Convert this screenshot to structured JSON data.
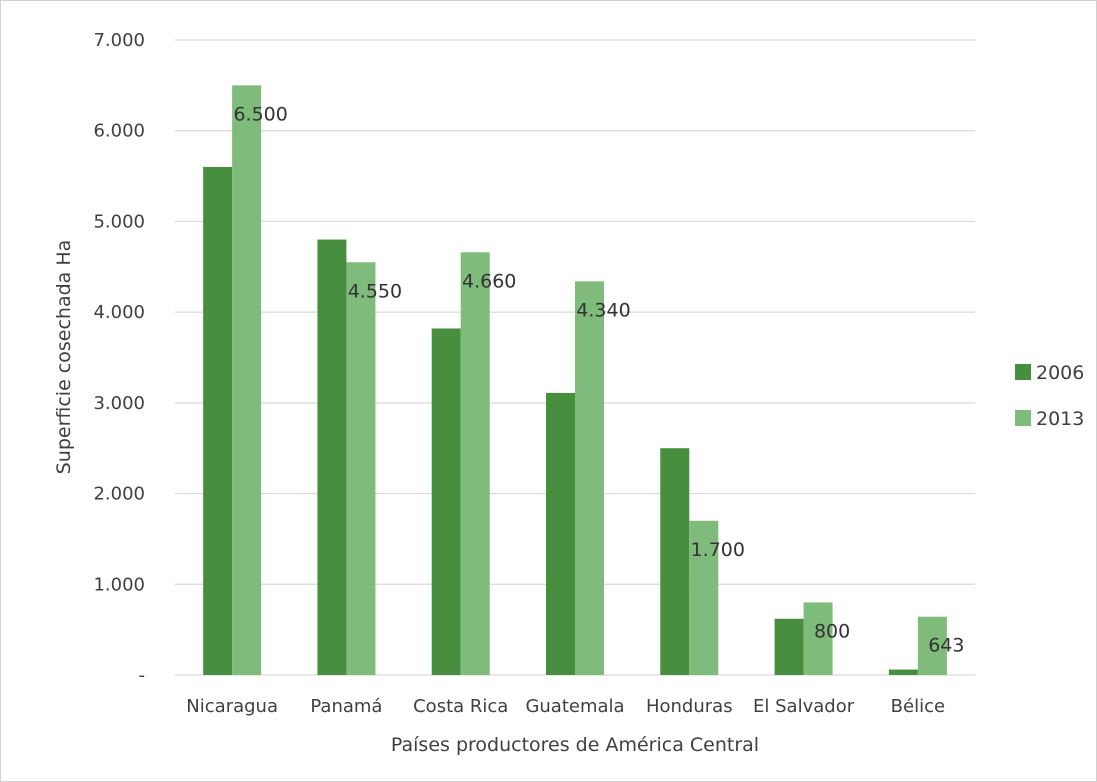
{
  "chart_data": {
    "type": "bar",
    "title": "",
    "xlabel": "Países productores de América Central",
    "ylabel": "Superficie cosechada Ha",
    "categories": [
      "Nicaragua",
      "Panamá",
      "Costa Rica",
      "Guatemala",
      "Honduras",
      "El Salvador",
      "Bélice"
    ],
    "series": [
      {
        "name": "2006",
        "color": "#478f3e",
        "values": [
          5600,
          4800,
          3820,
          3110,
          2500,
          620,
          60
        ]
      },
      {
        "name": "2013",
        "color": "#7fbb7a",
        "values": [
          6500,
          4550,
          4660,
          4340,
          1700,
          800,
          643
        ]
      }
    ],
    "data_labels": {
      "series": "2013",
      "texts": [
        "6.500",
        "4.550",
        "4.660",
        "4.340",
        "1.700",
        "800",
        "643"
      ]
    },
    "ylim": [
      0,
      7000
    ],
    "yticks": [
      0,
      1000,
      2000,
      3000,
      4000,
      5000,
      6000,
      7000
    ],
    "ytick_labels": [
      "-",
      "1.000",
      "2.000",
      "3.000",
      "4.000",
      "5.000",
      "6.000",
      "7.000"
    ],
    "grid": true,
    "legend_position": "right"
  }
}
